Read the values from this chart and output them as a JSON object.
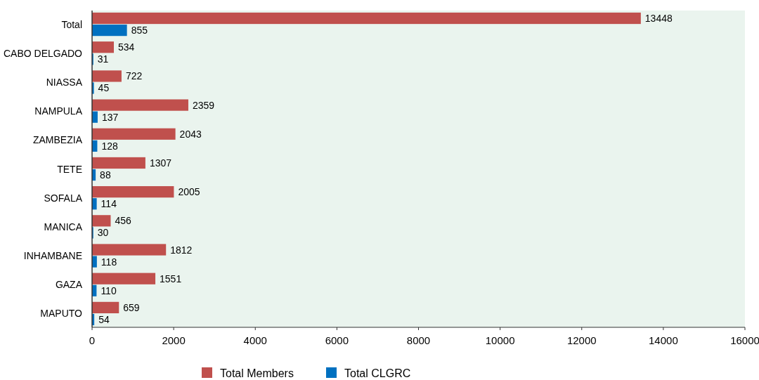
{
  "chart_data": {
    "type": "bar",
    "orientation": "horizontal",
    "categories": [
      "Total",
      "CABO DELGADO",
      "NIASSA",
      "NAMPULA",
      "ZAMBEZIA",
      "TETE",
      "SOFALA",
      "MANICA",
      "INHAMBANE",
      "GAZA",
      "MAPUTO"
    ],
    "series": [
      {
        "name": "Total Members",
        "color": "#c0504d",
        "values": [
          13448,
          534,
          722,
          2359,
          2043,
          1307,
          2005,
          456,
          1812,
          1551,
          659
        ]
      },
      {
        "name": "Total CLGRC",
        "color": "#0070c0",
        "values": [
          855,
          31,
          45,
          137,
          128,
          88,
          114,
          30,
          118,
          110,
          54
        ]
      }
    ],
    "xlim": [
      0,
      16000
    ],
    "xticks": [
      0,
      2000,
      4000,
      6000,
      8000,
      10000,
      12000,
      14000,
      16000
    ],
    "data_labels": true,
    "legend": "bottom",
    "grid": false
  }
}
